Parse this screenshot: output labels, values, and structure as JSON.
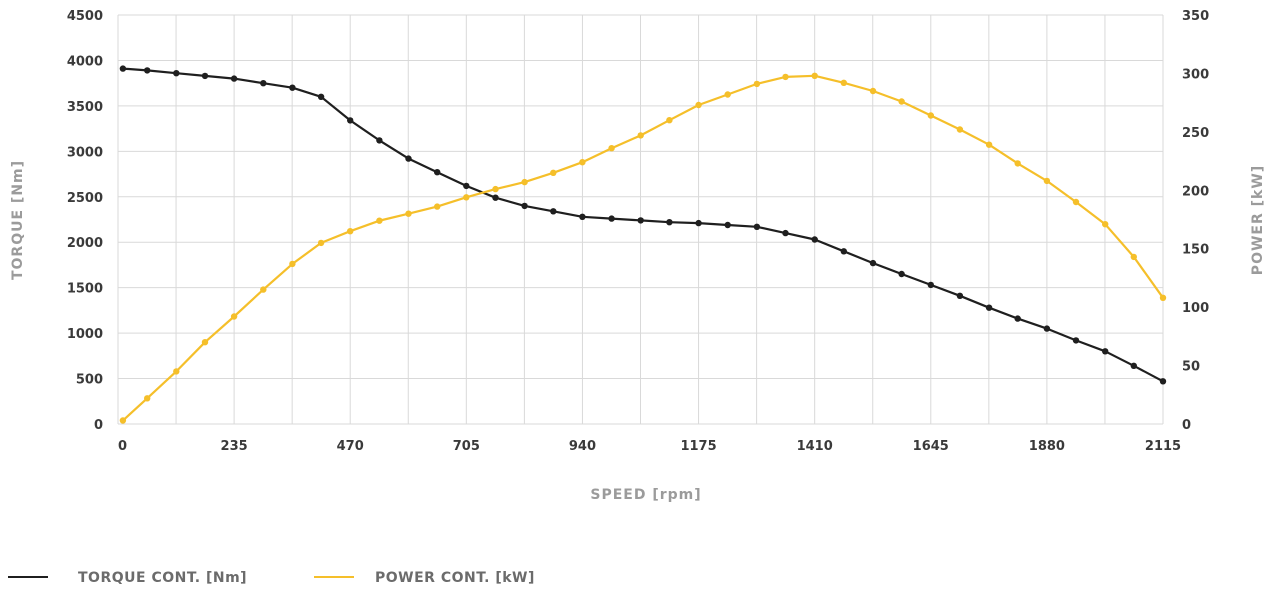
{
  "chart_data": {
    "type": "line",
    "xlabel": "SPEED [rpm]",
    "ylabel_left": "TORQUE [Nm]",
    "ylabel_right": "POWER [kW]",
    "xlim": [
      0,
      2115
    ],
    "ylim_left": [
      0,
      4500
    ],
    "ylim_right": [
      0,
      350
    ],
    "x_ticks": [
      0,
      235,
      470,
      705,
      940,
      1175,
      1410,
      1645,
      1880,
      2115
    ],
    "y_left_ticks": [
      0,
      500,
      1000,
      1500,
      2000,
      2500,
      3000,
      3500,
      4000,
      4500
    ],
    "y_right_ticks": [
      0,
      50,
      100,
      150,
      200,
      250,
      300,
      350
    ],
    "grid": true,
    "legend_position": "bottom-left",
    "colors": {
      "torque": "#1f1f1f",
      "power": "#f5bf2a",
      "grid": "#d9d9d9"
    },
    "series": [
      {
        "name": "TORQUE CONT. [Nm]",
        "axis": "left",
        "x": [
          10,
          59,
          118,
          176,
          235,
          294,
          353,
          411,
          470,
          529,
          588,
          646,
          705,
          764,
          823,
          881,
          940,
          999,
          1058,
          1116,
          1175,
          1234,
          1293,
          1351,
          1410,
          1469,
          1528,
          1586,
          1645,
          1704,
          1763,
          1821,
          1880,
          1939,
          1998,
          2056,
          2115
        ],
        "y": [
          3910,
          3890,
          3860,
          3830,
          3800,
          3750,
          3700,
          3600,
          3340,
          3120,
          2920,
          2770,
          2620,
          2490,
          2400,
          2340,
          2280,
          2260,
          2240,
          2220,
          2210,
          2190,
          2170,
          2100,
          2030,
          1900,
          1770,
          1650,
          1530,
          1410,
          1280,
          1160,
          1050,
          920,
          800,
          640,
          470
        ]
      },
      {
        "name": "POWER CONT. [kW]",
        "axis": "right",
        "x": [
          10,
          59,
          118,
          176,
          235,
          294,
          353,
          411,
          470,
          529,
          588,
          646,
          705,
          764,
          823,
          881,
          940,
          999,
          1058,
          1116,
          1175,
          1234,
          1293,
          1351,
          1410,
          1469,
          1528,
          1586,
          1645,
          1704,
          1763,
          1821,
          1880,
          1939,
          1998,
          2056,
          2115
        ],
        "y": [
          3,
          22,
          45,
          70,
          92,
          115,
          137,
          155,
          165,
          174,
          180,
          186,
          194,
          201,
          207,
          215,
          224,
          236,
          247,
          260,
          273,
          282,
          291,
          297,
          298,
          292,
          285,
          276,
          264,
          252,
          239,
          223,
          208,
          190,
          171,
          143,
          108
        ]
      }
    ]
  }
}
